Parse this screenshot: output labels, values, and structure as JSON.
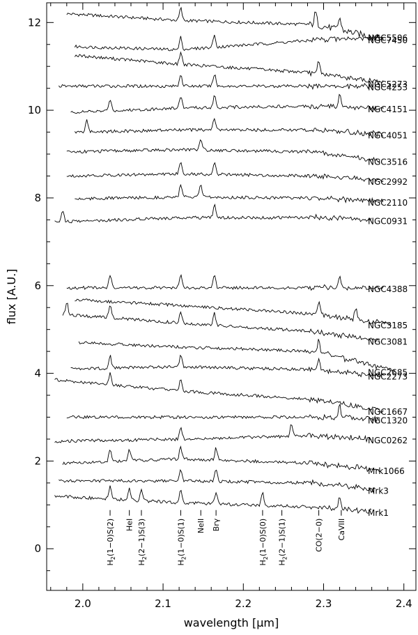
{
  "chart_data": {
    "type": "line",
    "xlabel": "wavelength [μm]",
    "ylabel": "flux [A.U.]",
    "xlim": [
      1.955,
      2.415
    ],
    "ylim": [
      -0.95,
      12.45
    ],
    "x_ticks": [
      2.0,
      2.1,
      2.2,
      2.3,
      2.4
    ],
    "x_tick_labels": [
      "2.0",
      "2.1",
      "2.2",
      "2.3",
      "2.4"
    ],
    "y_ticks": [
      0,
      2,
      4,
      6,
      8,
      10,
      12
    ],
    "y_tick_labels": [
      "0",
      "2",
      "4",
      "6",
      "8",
      "10",
      "12"
    ],
    "grid": false,
    "legend": "none",
    "line_color": "#000000",
    "series": [
      {
        "name": "NGC7450",
        "x": [
          1.98,
          2.12,
          2.29,
          2.375
        ],
        "y": [
          12.2,
          12.05,
          11.95,
          11.62
        ],
        "lines": [
          2.122,
          2.32,
          2.29
        ]
      },
      {
        "name": "NGC5506",
        "x": [
          1.99,
          2.12,
          2.29,
          2.375
        ],
        "y": [
          11.45,
          11.38,
          11.6,
          11.68
        ],
        "lines": [
          2.122,
          2.164
        ]
      },
      {
        "name": "NGC5273",
        "x": [
          1.99,
          2.12,
          2.29,
          2.375
        ],
        "y": [
          11.25,
          11.05,
          10.85,
          10.62
        ],
        "lines": [
          2.122,
          2.294
        ]
      },
      {
        "name": "NGC4253",
        "x": [
          1.97,
          2.12,
          2.29,
          2.36
        ],
        "y": [
          10.55,
          10.55,
          10.55,
          10.55
        ],
        "lines": [
          2.164,
          2.122
        ]
      },
      {
        "name": "NGC4151",
        "x": [
          1.985,
          2.12,
          2.29,
          2.375
        ],
        "y": [
          9.95,
          10.05,
          10.1,
          10.05
        ],
        "lines": [
          2.164,
          2.122,
          2.32,
          2.034
        ]
      },
      {
        "name": "NGC4051",
        "x": [
          1.99,
          2.12,
          2.29,
          2.375
        ],
        "y": [
          9.5,
          9.55,
          9.55,
          9.45
        ],
        "lines": [
          2.005,
          2.164
        ]
      },
      {
        "name": "NGC3516",
        "x": [
          1.98,
          2.12,
          2.29,
          2.37
        ],
        "y": [
          9.05,
          9.1,
          9.05,
          8.85
        ],
        "lines": [
          2.147
        ]
      },
      {
        "name": "NGC2992",
        "x": [
          1.98,
          2.12,
          2.29,
          2.375
        ],
        "y": [
          8.5,
          8.55,
          8.5,
          8.4
        ],
        "lines": [
          2.122,
          2.164
        ]
      },
      {
        "name": "NGC2110",
        "x": [
          1.99,
          2.12,
          2.29,
          2.375
        ],
        "y": [
          7.98,
          8.02,
          8.0,
          7.92
        ],
        "lines": [
          2.122,
          2.147
        ]
      },
      {
        "name": "NGC0931",
        "x": [
          1.965,
          2.12,
          2.29,
          2.36
        ],
        "y": [
          7.45,
          7.55,
          7.55,
          7.5
        ],
        "lines": [
          1.975,
          2.164
        ]
      },
      {
        "name": "NGC4388",
        "x": [
          1.98,
          2.12,
          2.29,
          2.375
        ],
        "y": [
          5.95,
          5.95,
          5.95,
          5.95
        ],
        "lines": [
          2.122,
          2.164,
          2.034,
          2.32
        ]
      },
      {
        "name": "NGC3185",
        "x": [
          1.99,
          2.12,
          2.29,
          2.385
        ],
        "y": [
          5.68,
          5.55,
          5.35,
          5.12
        ],
        "lines": [
          2.294,
          2.34
        ]
      },
      {
        "name": "NGC3081",
        "x": [
          1.975,
          2.12,
          2.29,
          2.37
        ],
        "y": [
          5.35,
          5.15,
          4.95,
          4.75
        ],
        "lines": [
          1.98,
          2.034,
          2.122,
          2.164
        ]
      },
      {
        "name": "NGC2685",
        "x": [
          1.995,
          2.12,
          2.29,
          2.39
        ],
        "y": [
          4.7,
          4.6,
          4.5,
          4.05
        ],
        "lines": [
          2.294
        ]
      },
      {
        "name": "NGC2273",
        "x": [
          1.985,
          2.12,
          2.29,
          2.375
        ],
        "y": [
          4.1,
          4.15,
          4.08,
          3.95
        ],
        "lines": [
          2.122,
          2.034,
          2.294
        ]
      },
      {
        "name": "NGC1667",
        "x": [
          1.965,
          2.12,
          2.29,
          2.375
        ],
        "y": [
          3.85,
          3.6,
          3.4,
          3.15
        ],
        "lines": [
          2.122,
          2.034
        ]
      },
      {
        "name": "NGC1320",
        "x": [
          1.98,
          2.12,
          2.29,
          2.37
        ],
        "y": [
          3.0,
          3.0,
          3.0,
          2.95
        ],
        "lines": [
          2.32
        ]
      },
      {
        "name": "NGC0262",
        "x": [
          1.965,
          2.12,
          2.29,
          2.36
        ],
        "y": [
          2.45,
          2.5,
          2.58,
          2.5
        ],
        "lines": [
          2.26,
          2.122
        ]
      },
      {
        "name": "Mrk1066",
        "x": [
          1.975,
          2.12,
          2.29,
          2.37
        ],
        "y": [
          1.95,
          2.05,
          1.95,
          1.8
        ],
        "lines": [
          2.034,
          2.058,
          2.122,
          2.166
        ]
      },
      {
        "name": "Mrk3",
        "x": [
          1.97,
          2.12,
          2.29,
          2.365
        ],
        "y": [
          1.55,
          1.55,
          1.5,
          1.35
        ],
        "lines": [
          2.122,
          2.166
        ]
      },
      {
        "name": "Mrk1",
        "x": [
          1.965,
          2.12,
          2.29,
          2.36
        ],
        "y": [
          1.2,
          1.05,
          0.95,
          0.85
        ],
        "lines": [
          2.034,
          2.058,
          2.073,
          2.122,
          2.166,
          2.224,
          2.32
        ]
      }
    ],
    "line_labels": [
      {
        "id": "h2-10-s2",
        "main": "H",
        "sub": "2",
        "rest": "(1−0)S(2)",
        "x": 2.034
      },
      {
        "id": "hei",
        "main": "HeI",
        "sub": "",
        "rest": "",
        "x": 2.058
      },
      {
        "id": "h2-21-s3",
        "main": "H",
        "sub": "2",
        "rest": "(2−1)S(3)",
        "x": 2.073
      },
      {
        "id": "h2-10-s1",
        "main": "H",
        "sub": "2",
        "rest": "(1−0)S(1)",
        "x": 2.122
      },
      {
        "id": "neii",
        "main": "NeII",
        "sub": "",
        "rest": "",
        "x": 2.147
      },
      {
        "id": "brg",
        "main": "Brγ",
        "sub": "",
        "rest": "",
        "x": 2.166
      },
      {
        "id": "h2-10-s0",
        "main": "H",
        "sub": "2",
        "rest": "(1−0)S(0)",
        "x": 2.224
      },
      {
        "id": "h2-21-s1",
        "main": "H",
        "sub": "2",
        "rest": "(2−1)S(1)",
        "x": 2.248
      },
      {
        "id": "co-20",
        "main": "CO(2−0)",
        "sub": "",
        "rest": "",
        "x": 2.294
      },
      {
        "id": "caviii",
        "main": "CaVIII",
        "sub": "",
        "rest": "",
        "x": 2.322
      }
    ]
  }
}
